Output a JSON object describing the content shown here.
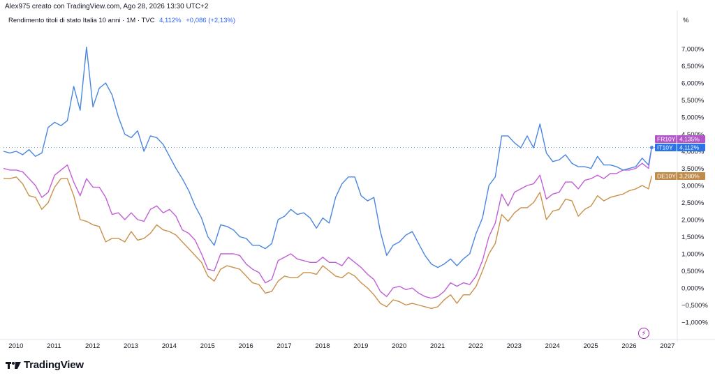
{
  "header": {
    "attribution": "Alex975 creato con TradingView.com, Ago 28, 2026 13:30 UTC+2"
  },
  "legend": {
    "title": "Rendimento titoli di stato Italia 10 anni · 1M · TVC",
    "last_value": "4,112%",
    "change": "+0,086 (+2,13%)"
  },
  "axis_unit": "%",
  "footer": {
    "brand": "TradingView"
  },
  "colors": {
    "IT10Y": "#4a86e0",
    "FR10Y": "#c25fd6",
    "DE10Y": "#c9914a",
    "FR10Y_badge": "#b354c9",
    "IT10Y_badge": "#2a74e6",
    "DE10Y_badge": "#c08a47"
  },
  "chart_data": {
    "type": "line",
    "x": [
      "2009-09",
      "2009-11",
      "2010-01",
      "2010-03",
      "2010-05",
      "2010-07",
      "2010-09",
      "2010-11",
      "2011-01",
      "2011-03",
      "2011-05",
      "2011-07",
      "2011-09",
      "2011-11",
      "2012-01",
      "2012-03",
      "2012-05",
      "2012-07",
      "2012-09",
      "2012-11",
      "2013-01",
      "2013-03",
      "2013-05",
      "2013-07",
      "2013-09",
      "2013-11",
      "2014-01",
      "2014-03",
      "2014-05",
      "2014-07",
      "2014-09",
      "2014-11",
      "2015-01",
      "2015-03",
      "2015-05",
      "2015-07",
      "2015-09",
      "2015-11",
      "2016-01",
      "2016-03",
      "2016-05",
      "2016-07",
      "2016-09",
      "2016-11",
      "2017-01",
      "2017-03",
      "2017-05",
      "2017-07",
      "2017-09",
      "2017-11",
      "2018-01",
      "2018-03",
      "2018-05",
      "2018-07",
      "2018-09",
      "2018-11",
      "2019-01",
      "2019-03",
      "2019-05",
      "2019-07",
      "2019-09",
      "2019-11",
      "2020-01",
      "2020-03",
      "2020-05",
      "2020-07",
      "2020-09",
      "2020-11",
      "2021-01",
      "2021-03",
      "2021-05",
      "2021-07",
      "2021-09",
      "2021-11",
      "2022-01",
      "2022-03",
      "2022-05",
      "2022-07",
      "2022-09",
      "2022-11",
      "2023-01",
      "2023-03",
      "2023-05",
      "2023-07",
      "2023-09",
      "2023-11",
      "2024-01",
      "2024-03",
      "2024-05",
      "2024-07",
      "2024-09",
      "2024-11",
      "2025-01",
      "2025-03",
      "2025-05",
      "2025-07",
      "2025-09",
      "2025-11",
      "2026-01",
      "2026-03",
      "2026-05",
      "2026-07",
      "2026-08"
    ],
    "series": [
      {
        "name": "IT10Y",
        "values": [
          4.0,
          3.95,
          4.0,
          3.9,
          4.05,
          3.85,
          3.95,
          4.7,
          4.85,
          4.75,
          4.9,
          5.9,
          5.2,
          7.05,
          5.3,
          5.85,
          6.0,
          5.65,
          5.0,
          4.5,
          4.4,
          4.6,
          4.0,
          4.45,
          4.4,
          4.2,
          3.85,
          3.5,
          3.2,
          2.85,
          2.4,
          2.05,
          1.5,
          1.25,
          1.85,
          1.8,
          1.7,
          1.5,
          1.45,
          1.25,
          1.25,
          1.15,
          1.3,
          2.0,
          2.1,
          2.3,
          2.15,
          2.2,
          2.05,
          1.75,
          2.05,
          1.9,
          2.65,
          3.05,
          3.25,
          3.25,
          2.7,
          2.55,
          2.65,
          1.65,
          0.95,
          1.25,
          1.35,
          1.55,
          1.65,
          1.3,
          0.95,
          0.7,
          0.6,
          0.7,
          0.85,
          0.65,
          0.85,
          1.0,
          1.6,
          2.05,
          3.0,
          3.25,
          4.45,
          4.45,
          4.25,
          4.1,
          4.45,
          4.1,
          4.8,
          3.95,
          3.7,
          3.75,
          3.9,
          3.65,
          3.55,
          3.55,
          3.5,
          3.85,
          3.6,
          3.6,
          3.55,
          3.45,
          3.5,
          3.55,
          3.8,
          3.6,
          4.11
        ]
      },
      {
        "name": "FR10Y",
        "values": [
          3.5,
          3.45,
          3.45,
          3.4,
          3.2,
          3.0,
          2.65,
          2.8,
          3.3,
          3.45,
          3.6,
          3.1,
          2.7,
          3.2,
          2.95,
          2.95,
          2.65,
          2.15,
          2.2,
          2.0,
          2.2,
          2.0,
          1.95,
          2.3,
          2.4,
          2.2,
          2.3,
          2.1,
          1.7,
          1.6,
          1.4,
          1.0,
          0.55,
          0.5,
          1.0,
          1.0,
          1.0,
          0.95,
          0.7,
          0.55,
          0.45,
          0.15,
          0.25,
          0.8,
          0.9,
          1.0,
          0.85,
          0.8,
          0.75,
          0.75,
          0.9,
          0.75,
          0.75,
          0.65,
          0.9,
          0.75,
          0.6,
          0.4,
          0.25,
          -0.1,
          -0.25,
          0.0,
          0.05,
          -0.05,
          0.0,
          -0.15,
          -0.25,
          -0.3,
          -0.25,
          -0.1,
          0.15,
          0.05,
          0.15,
          0.1,
          0.35,
          0.8,
          1.5,
          1.9,
          2.75,
          2.4,
          2.8,
          2.9,
          3.0,
          3.05,
          3.3,
          2.6,
          2.75,
          2.8,
          3.1,
          3.1,
          2.9,
          3.15,
          3.2,
          3.3,
          3.2,
          3.35,
          3.35,
          3.45,
          3.45,
          3.5,
          3.65,
          3.5,
          4.135
        ]
      },
      {
        "name": "DE10Y",
        "values": [
          3.2,
          3.2,
          3.25,
          3.05,
          2.7,
          2.65,
          2.3,
          2.5,
          2.95,
          3.2,
          3.2,
          2.7,
          2.0,
          1.95,
          1.85,
          1.8,
          1.35,
          1.45,
          1.45,
          1.35,
          1.65,
          1.4,
          1.45,
          1.6,
          1.85,
          1.7,
          1.65,
          1.55,
          1.35,
          1.15,
          0.95,
          0.75,
          0.35,
          0.2,
          0.55,
          0.65,
          0.6,
          0.55,
          0.35,
          0.15,
          0.1,
          -0.15,
          -0.1,
          0.2,
          0.35,
          0.3,
          0.3,
          0.45,
          0.45,
          0.4,
          0.65,
          0.5,
          0.35,
          0.3,
          0.45,
          0.35,
          0.15,
          0.0,
          -0.2,
          -0.45,
          -0.55,
          -0.35,
          -0.4,
          -0.5,
          -0.45,
          -0.5,
          -0.55,
          -0.6,
          -0.55,
          -0.35,
          -0.2,
          -0.45,
          -0.2,
          -0.2,
          0.05,
          0.5,
          1.0,
          1.3,
          2.15,
          1.95,
          2.2,
          2.35,
          2.35,
          2.5,
          2.8,
          2.0,
          2.25,
          2.3,
          2.6,
          2.55,
          2.1,
          2.3,
          2.4,
          2.7,
          2.55,
          2.65,
          2.7,
          2.75,
          2.85,
          2.9,
          3.0,
          2.9,
          3.28
        ]
      }
    ],
    "y_ticks": [
      "7,000%",
      "6,500%",
      "6,000%",
      "5,500%",
      "5,000%",
      "4,500%",
      "4,000%",
      "3,500%",
      "3,000%",
      "2,500%",
      "2,000%",
      "1,500%",
      "1,000%",
      "0,500%",
      "0,000%",
      "−0,500%",
      "−1,000%"
    ],
    "y_tick_values": [
      7.0,
      6.5,
      6.0,
      5.5,
      5.0,
      4.5,
      4.0,
      3.5,
      3.0,
      2.5,
      2.0,
      1.5,
      1.0,
      0.5,
      0.0,
      -0.5,
      -1.0
    ],
    "x_ticks": [
      "2010",
      "2011",
      "2012",
      "2013",
      "2014",
      "2015",
      "2016",
      "2017",
      "2018",
      "2019",
      "2020",
      "2021",
      "2022",
      "2023",
      "2024",
      "2025",
      "2026",
      "2027"
    ],
    "x_tick_values": [
      "2010-01",
      "2011-01",
      "2012-01",
      "2013-01",
      "2014-01",
      "2015-01",
      "2016-01",
      "2017-01",
      "2018-01",
      "2019-01",
      "2020-01",
      "2021-01",
      "2022-01",
      "2023-01",
      "2024-01",
      "2025-01",
      "2026-01",
      "2027-01"
    ],
    "badges": [
      {
        "label": "FR10Y",
        "value": "4,135%"
      },
      {
        "label": "IT10Y",
        "value": "4,112%"
      },
      {
        "label": "DE10Y",
        "value": "3,280%"
      }
    ],
    "ylim": [
      -1.2,
      7.4
    ],
    "grid": false
  }
}
